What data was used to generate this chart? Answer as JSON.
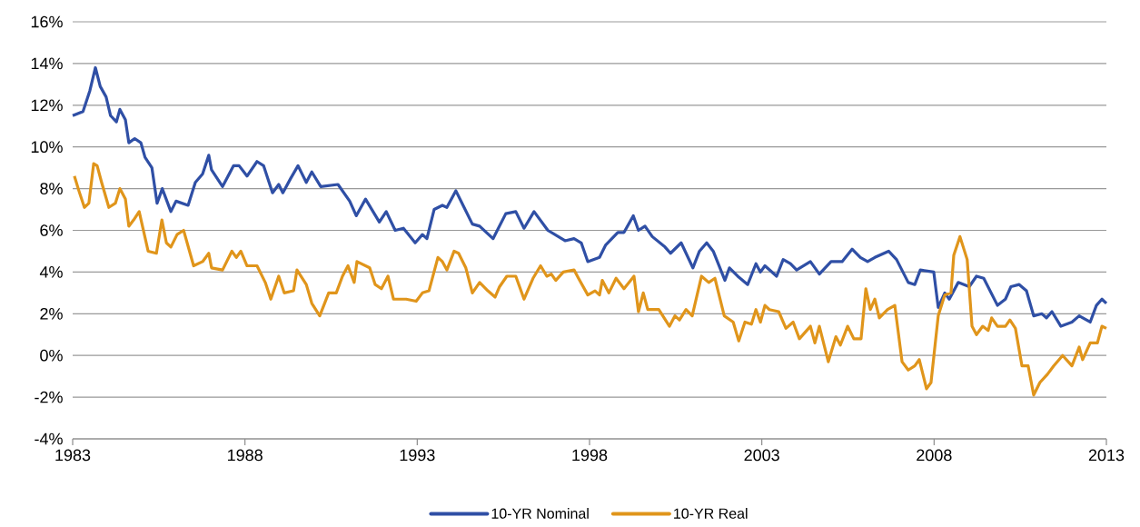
{
  "chart_data": {
    "type": "line",
    "xlim": [
      1983,
      2013
    ],
    "xticks": [
      1983,
      1988,
      1993,
      1998,
      2003,
      2008,
      2013
    ],
    "ylim": [
      -4,
      16
    ],
    "yticks": [
      {
        "value": -4,
        "label": "-4%"
      },
      {
        "value": -2,
        "label": "-2%"
      },
      {
        "value": 0,
        "label": "0%"
      },
      {
        "value": 2,
        "label": "2%"
      },
      {
        "value": 4,
        "label": "4%"
      },
      {
        "value": 6,
        "label": "6%"
      },
      {
        "value": 8,
        "label": "8%"
      },
      {
        "value": 10,
        "label": "10%"
      },
      {
        "value": 12,
        "label": "12%"
      },
      {
        "value": 14,
        "label": "14%"
      },
      {
        "value": 16,
        "label": "16%"
      }
    ],
    "grid": "y",
    "legend": "bottom",
    "marker": "none",
    "line_style": "solid",
    "series": [
      {
        "name": "10-YR Nominal",
        "color": "#2f4fa5",
        "x": [
          1983.0,
          1983.3,
          1983.5,
          1983.66,
          1983.8,
          1983.97,
          1984.1,
          1984.27,
          1984.37,
          1984.53,
          1984.63,
          1984.8,
          1984.98,
          1985.1,
          1985.3,
          1985.45,
          1985.6,
          1985.85,
          1986.0,
          1986.35,
          1986.56,
          1986.77,
          1986.95,
          1987.03,
          1987.35,
          1987.67,
          1987.83,
          1988.06,
          1988.35,
          1988.54,
          1988.8,
          1988.98,
          1989.1,
          1989.33,
          1989.54,
          1989.78,
          1989.94,
          1990.2,
          1990.7,
          1991.04,
          1991.23,
          1991.5,
          1991.9,
          1992.1,
          1992.36,
          1992.6,
          1992.94,
          1993.15,
          1993.28,
          1993.49,
          1993.73,
          1993.86,
          1994.12,
          1994.33,
          1994.6,
          1994.81,
          1995.2,
          1995.57,
          1995.86,
          1996.1,
          1996.39,
          1996.79,
          1997.29,
          1997.55,
          1997.76,
          1997.95,
          1998.29,
          1998.47,
          1998.82,
          1999.0,
          1999.27,
          1999.42,
          1999.61,
          1999.82,
          2000.19,
          2000.35,
          2000.66,
          2001.0,
          2001.19,
          2001.4,
          2001.59,
          2001.93,
          2002.06,
          2002.3,
          2002.59,
          2002.83,
          2002.96,
          2003.09,
          2003.43,
          2003.62,
          2003.83,
          2004.01,
          2004.41,
          2004.67,
          2005.01,
          2005.33,
          2005.62,
          2005.86,
          2006.07,
          2006.28,
          2006.68,
          2006.91,
          2007.25,
          2007.44,
          2007.6,
          2007.99,
          2008.12,
          2008.31,
          2008.44,
          2008.7,
          2009.02,
          2009.23,
          2009.44,
          2009.84,
          2010.07,
          2010.23,
          2010.47,
          2010.68,
          2010.89,
          2011.13,
          2011.26,
          2011.42,
          2011.68,
          2012.0,
          2012.21,
          2012.53,
          2012.71,
          2012.87,
          2013.0
        ],
        "values": [
          11.5,
          11.7,
          12.7,
          13.8,
          12.9,
          12.4,
          11.5,
          11.2,
          11.8,
          11.3,
          10.2,
          10.4,
          10.2,
          9.5,
          9.0,
          7.3,
          8.0,
          6.9,
          7.4,
          7.2,
          8.3,
          8.7,
          9.6,
          8.9,
          8.1,
          9.1,
          9.1,
          8.6,
          9.3,
          9.1,
          7.8,
          8.2,
          7.8,
          8.5,
          9.1,
          8.3,
          8.8,
          8.1,
          8.2,
          7.4,
          6.7,
          7.5,
          6.4,
          6.9,
          6.0,
          6.1,
          5.4,
          5.8,
          5.6,
          7.0,
          7.2,
          7.1,
          7.9,
          7.2,
          6.3,
          6.2,
          5.6,
          6.8,
          6.9,
          6.1,
          6.9,
          6.0,
          5.5,
          5.6,
          5.4,
          4.5,
          4.7,
          5.3,
          5.9,
          5.9,
          6.7,
          6.0,
          6.2,
          5.7,
          5.2,
          4.9,
          5.4,
          4.2,
          5.0,
          5.4,
          5.0,
          3.6,
          4.2,
          3.8,
          3.4,
          4.4,
          4.0,
          4.3,
          3.8,
          4.6,
          4.4,
          4.1,
          4.5,
          3.9,
          4.5,
          4.5,
          5.1,
          4.7,
          4.5,
          4.7,
          5.0,
          4.6,
          3.5,
          3.4,
          4.1,
          4.0,
          2.3,
          3.0,
          2.7,
          3.5,
          3.3,
          3.8,
          3.7,
          2.4,
          2.7,
          3.3,
          3.4,
          3.1,
          1.9,
          2.0,
          1.8,
          2.1,
          1.4,
          1.6,
          1.9,
          1.6,
          2.4,
          2.7,
          2.5
        ]
      },
      {
        "name": "10-YR Real",
        "color": "#e0951b",
        "x": [
          1983.05,
          1983.18,
          1983.34,
          1983.47,
          1983.61,
          1983.71,
          1983.84,
          1984.05,
          1984.24,
          1984.37,
          1984.53,
          1984.63,
          1984.77,
          1984.93,
          1985.19,
          1985.43,
          1985.59,
          1985.72,
          1985.85,
          1986.03,
          1986.22,
          1986.51,
          1986.77,
          1986.95,
          1987.03,
          1987.35,
          1987.62,
          1987.75,
          1987.88,
          1988.06,
          1988.35,
          1988.59,
          1988.75,
          1988.98,
          1989.14,
          1989.41,
          1989.51,
          1989.78,
          1989.94,
          1990.17,
          1990.43,
          1990.65,
          1990.83,
          1990.99,
          1991.17,
          1991.25,
          1991.62,
          1991.78,
          1991.96,
          1992.15,
          1992.31,
          1992.68,
          1992.97,
          1993.15,
          1993.34,
          1993.6,
          1993.73,
          1993.86,
          1994.07,
          1994.2,
          1994.41,
          1994.6,
          1994.81,
          1995.05,
          1995.26,
          1995.39,
          1995.6,
          1995.86,
          1996.1,
          1996.36,
          1996.58,
          1996.76,
          1996.89,
          1997.02,
          1997.24,
          1997.55,
          1997.68,
          1997.95,
          1998.16,
          1998.29,
          1998.37,
          1998.56,
          1998.77,
          1999.0,
          1999.29,
          1999.42,
          1999.56,
          1999.69,
          2000.01,
          2000.32,
          2000.48,
          2000.61,
          2000.8,
          2000.98,
          2001.25,
          2001.46,
          2001.64,
          2001.91,
          2002.17,
          2002.33,
          2002.51,
          2002.7,
          2002.83,
          2002.96,
          2003.09,
          2003.22,
          2003.49,
          2003.7,
          2003.91,
          2004.09,
          2004.41,
          2004.54,
          2004.67,
          2004.93,
          2005.15,
          2005.28,
          2005.49,
          2005.67,
          2005.88,
          2006.02,
          2006.15,
          2006.28,
          2006.41,
          2006.65,
          2006.86,
          2007.07,
          2007.25,
          2007.44,
          2007.57,
          2007.78,
          2007.91,
          2008.12,
          2008.31,
          2008.49,
          2008.57,
          2008.75,
          2008.96,
          2009.1,
          2009.23,
          2009.41,
          2009.57,
          2009.67,
          2009.84,
          2010.07,
          2010.2,
          2010.36,
          2010.55,
          2010.73,
          2010.89,
          2011.07,
          2011.29,
          2011.47,
          2011.73,
          2012.0,
          2012.21,
          2012.31,
          2012.53,
          2012.74,
          2012.87,
          2013.0
        ],
        "values": [
          8.6,
          7.9,
          7.1,
          7.3,
          9.2,
          9.1,
          8.3,
          7.1,
          7.3,
          8.0,
          7.5,
          6.2,
          6.5,
          6.9,
          5.0,
          4.9,
          6.5,
          5.4,
          5.2,
          5.8,
          6.0,
          4.3,
          4.5,
          4.9,
          4.2,
          4.1,
          5.0,
          4.7,
          5.0,
          4.3,
          4.3,
          3.5,
          2.7,
          3.8,
          3.0,
          3.1,
          4.1,
          3.4,
          2.5,
          1.9,
          3.0,
          3.0,
          3.8,
          4.3,
          3.5,
          4.5,
          4.2,
          3.4,
          3.2,
          3.8,
          2.7,
          2.7,
          2.6,
          3.0,
          3.1,
          4.7,
          4.5,
          4.1,
          5.0,
          4.9,
          4.2,
          3.0,
          3.5,
          3.1,
          2.8,
          3.3,
          3.8,
          3.8,
          2.7,
          3.7,
          4.3,
          3.8,
          3.9,
          3.6,
          4.0,
          4.1,
          3.7,
          2.9,
          3.1,
          2.9,
          3.6,
          3.0,
          3.7,
          3.2,
          3.8,
          2.1,
          3.0,
          2.2,
          2.2,
          1.4,
          1.9,
          1.7,
          2.2,
          1.9,
          3.8,
          3.5,
          3.7,
          1.9,
          1.6,
          0.7,
          1.6,
          1.5,
          2.2,
          1.6,
          2.4,
          2.2,
          2.1,
          1.3,
          1.6,
          0.8,
          1.4,
          0.6,
          1.4,
          -0.3,
          0.9,
          0.5,
          1.4,
          0.8,
          0.8,
          3.2,
          2.2,
          2.7,
          1.8,
          2.2,
          2.4,
          -0.3,
          -0.7,
          -0.5,
          -0.2,
          -1.6,
          -1.3,
          1.9,
          2.9,
          3.0,
          4.8,
          5.7,
          4.6,
          1.4,
          1.0,
          1.4,
          1.2,
          1.8,
          1.4,
          1.4,
          1.7,
          1.3,
          -0.5,
          -0.5,
          -1.9,
          -1.3,
          -0.9,
          -0.5,
          0.0,
          -0.5,
          0.4,
          -0.2,
          0.6,
          0.6,
          1.4,
          1.3
        ]
      }
    ]
  }
}
